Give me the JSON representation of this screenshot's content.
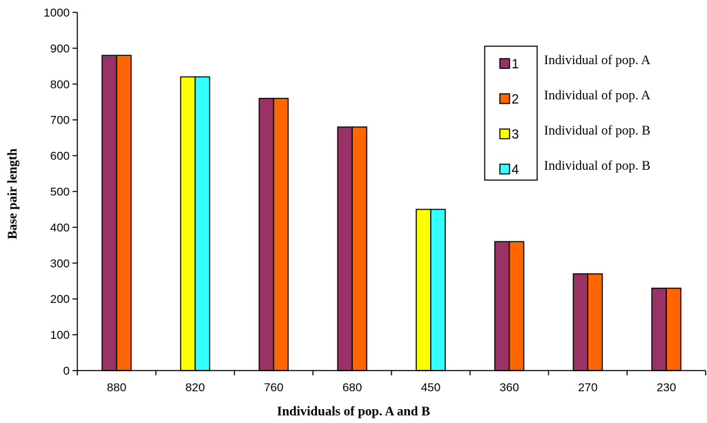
{
  "chart_data": {
    "type": "bar",
    "xlabel": "Individuals of pop. A and B",
    "ylabel": "Base pair length",
    "ylim": [
      0,
      1000
    ],
    "yticks": [
      "0",
      "100",
      "200",
      "300",
      "400",
      "500",
      "600",
      "700",
      "800",
      "900",
      "1000"
    ],
    "categories": [
      "880",
      "820",
      "760",
      "680",
      "450",
      "360",
      "270",
      "230"
    ],
    "series": [
      {
        "name": "1",
        "desc": "Individual of pop. A",
        "color": "#993366",
        "values": [
          880,
          null,
          760,
          680,
          null,
          360,
          270,
          230
        ]
      },
      {
        "name": "2",
        "desc": "Individual of pop. A",
        "color": "#ff6600",
        "values": [
          880,
          null,
          760,
          680,
          null,
          360,
          270,
          230
        ]
      },
      {
        "name": "3",
        "desc": "Individual of pop. B",
        "color": "#ffff00",
        "values": [
          null,
          820,
          null,
          null,
          450,
          null,
          null,
          null
        ]
      },
      {
        "name": "4",
        "desc": "Individual of pop. B",
        "color": "#33ffff",
        "values": [
          null,
          820,
          null,
          null,
          450,
          null,
          null,
          null
        ]
      }
    ],
    "legend_position": "top-right",
    "grid": false
  }
}
